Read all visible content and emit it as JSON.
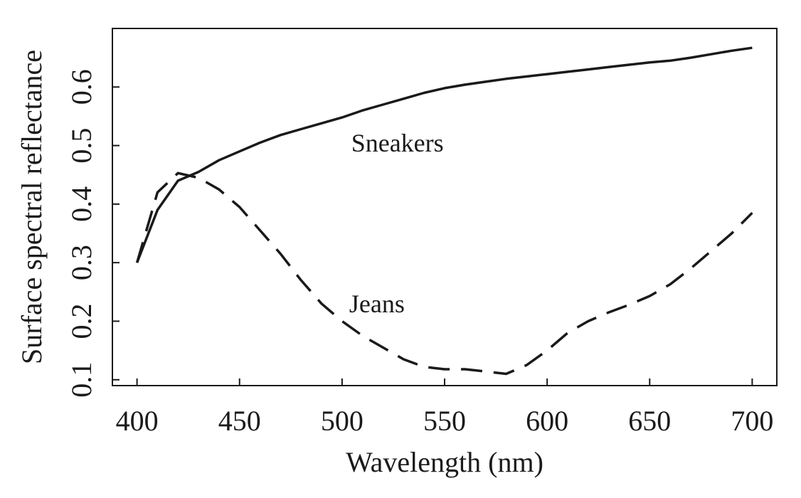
{
  "chart_data": {
    "type": "line",
    "title": "",
    "xlabel": "Wavelength (nm)",
    "ylabel": "Surface spectral reflectance",
    "xlim": [
      388,
      712
    ],
    "ylim": [
      0.09,
      0.7
    ],
    "xticks": [
      400,
      450,
      500,
      550,
      600,
      650,
      700
    ],
    "yticks": [
      0.1,
      0.2,
      0.3,
      0.4,
      0.5,
      0.6
    ],
    "ytick_labels": [
      "0.1",
      "0.2",
      "0.3",
      "0.4",
      "0.5",
      "0.6"
    ],
    "grid": false,
    "legend": "none",
    "series": [
      {
        "name": "Sneakers",
        "line_style": "solid",
        "color": "#1a1a1a",
        "x": [
          400,
          410,
          420,
          430,
          440,
          450,
          460,
          470,
          480,
          490,
          500,
          510,
          520,
          530,
          540,
          550,
          560,
          570,
          580,
          590,
          600,
          610,
          620,
          630,
          640,
          650,
          660,
          670,
          680,
          690,
          700
        ],
        "y": [
          0.3,
          0.39,
          0.44,
          0.455,
          0.475,
          0.49,
          0.505,
          0.518,
          0.528,
          0.538,
          0.548,
          0.56,
          0.57,
          0.58,
          0.59,
          0.598,
          0.604,
          0.609,
          0.614,
          0.618,
          0.622,
          0.626,
          0.63,
          0.634,
          0.638,
          0.642,
          0.645,
          0.65,
          0.656,
          0.662,
          0.667
        ]
      },
      {
        "name": "Jeans",
        "line_style": "dashed",
        "color": "#1a1a1a",
        "x": [
          400,
          410,
          420,
          430,
          440,
          450,
          460,
          470,
          480,
          490,
          500,
          510,
          520,
          530,
          540,
          550,
          560,
          570,
          580,
          590,
          600,
          610,
          620,
          630,
          640,
          650,
          660,
          670,
          680,
          690,
          700
        ],
        "y": [
          0.3,
          0.42,
          0.453,
          0.445,
          0.425,
          0.395,
          0.355,
          0.315,
          0.27,
          0.23,
          0.2,
          0.175,
          0.155,
          0.135,
          0.122,
          0.118,
          0.118,
          0.114,
          0.11,
          0.125,
          0.15,
          0.18,
          0.2,
          0.215,
          0.228,
          0.243,
          0.263,
          0.29,
          0.32,
          0.35,
          0.385
        ]
      }
    ],
    "annotations": [
      {
        "text": "Sneakers",
        "x": 527,
        "y": 0.49
      },
      {
        "text": "Jeans",
        "x": 517,
        "y": 0.215
      }
    ]
  }
}
